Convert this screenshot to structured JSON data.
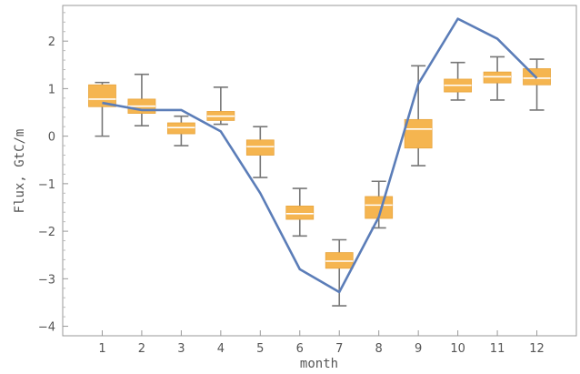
{
  "chart_data": {
    "type": "box",
    "xlabel": "month",
    "ylabel": "Flux, GtC/m",
    "xlim": [
      0,
      13
    ],
    "ylim": [
      -4.2,
      2.75
    ],
    "x_ticks": [
      1,
      2,
      3,
      4,
      5,
      6,
      7,
      8,
      9,
      10,
      11,
      12
    ],
    "y_ticks": [
      -4,
      -3,
      -2,
      -1,
      0,
      1,
      2
    ],
    "y_tick_labels": [
      "−4",
      "−3",
      "−2",
      "−1",
      "0",
      "1",
      "2"
    ],
    "grid": false,
    "box_series": {
      "color": "#f5b550",
      "median_color": "#ffffff",
      "whisker_color": "#777777",
      "boxes": [
        {
          "x": 1,
          "min": 0.0,
          "q1": 0.62,
          "median": 0.78,
          "q3": 1.08,
          "max": 1.13
        },
        {
          "x": 2,
          "min": 0.22,
          "q1": 0.48,
          "median": 0.63,
          "q3": 0.78,
          "max": 1.3
        },
        {
          "x": 3,
          "min": -0.2,
          "q1": 0.05,
          "median": 0.18,
          "q3": 0.28,
          "max": 0.42
        },
        {
          "x": 4,
          "min": 0.25,
          "q1": 0.33,
          "median": 0.42,
          "q3": 0.52,
          "max": 1.03
        },
        {
          "x": 5,
          "min": -0.87,
          "q1": -0.4,
          "median": -0.22,
          "q3": -0.08,
          "max": 0.2
        },
        {
          "x": 6,
          "min": -2.1,
          "q1": -1.75,
          "median": -1.63,
          "q3": -1.47,
          "max": -1.1
        },
        {
          "x": 7,
          "min": -3.57,
          "q1": -2.78,
          "median": -2.63,
          "q3": -2.45,
          "max": -2.18
        },
        {
          "x": 8,
          "min": -1.93,
          "q1": -1.73,
          "median": -1.45,
          "q3": -1.27,
          "max": -0.95
        },
        {
          "x": 9,
          "min": -0.62,
          "q1": -0.25,
          "median": 0.15,
          "q3": 0.35,
          "max": 1.48
        },
        {
          "x": 10,
          "min": 0.76,
          "q1": 0.93,
          "median": 1.07,
          "q3": 1.2,
          "max": 1.55
        },
        {
          "x": 11,
          "min": 0.76,
          "q1": 1.12,
          "median": 1.25,
          "q3": 1.35,
          "max": 1.67
        },
        {
          "x": 12,
          "min": 0.55,
          "q1": 1.08,
          "median": 1.22,
          "q3": 1.42,
          "max": 1.62
        }
      ]
    },
    "line_series": {
      "color": "#5b7db8",
      "x": [
        1,
        2,
        3,
        4,
        5,
        6,
        7,
        8,
        9,
        10,
        11,
        12
      ],
      "y": [
        0.7,
        0.55,
        0.55,
        0.1,
        -1.2,
        -2.8,
        -3.28,
        -1.7,
        1.1,
        2.47,
        2.05,
        1.22
      ]
    }
  }
}
